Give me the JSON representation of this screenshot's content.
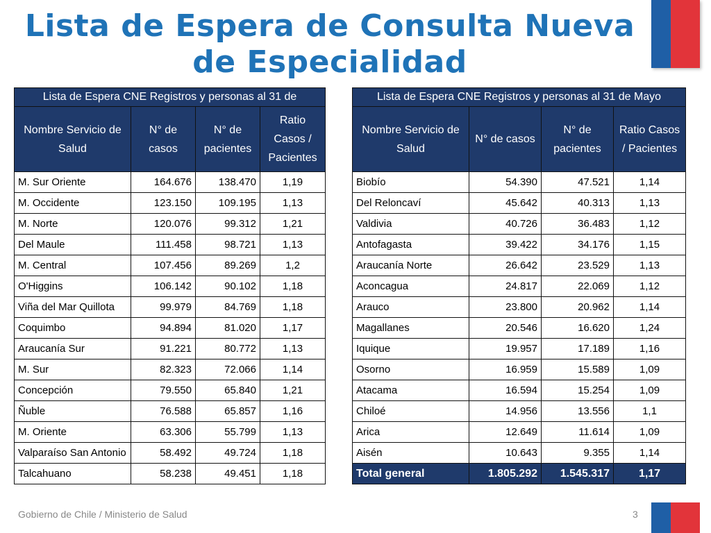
{
  "title": "Lista de Espera de Consulta Nueva de Especialidad",
  "table_left": {
    "caption": "Lista de Espera CNE Registros y  personas al  31 de",
    "headers": [
      "Nombre Servicio de Salud",
      "N° de casos",
      "N° de pacientes",
      "Ratio Casos / Pacientes"
    ],
    "rows": [
      [
        "M. Sur Oriente",
        "164.676",
        "138.470",
        "1,19"
      ],
      [
        "M. Occidente",
        "123.150",
        "109.195",
        "1,13"
      ],
      [
        "M. Norte",
        "120.076",
        "99.312",
        "1,21"
      ],
      [
        "Del Maule",
        "111.458",
        "98.721",
        "1,13"
      ],
      [
        "M. Central",
        "107.456",
        "89.269",
        "1,2"
      ],
      [
        "O'Higgins",
        "106.142",
        "90.102",
        "1,18"
      ],
      [
        "Viña del Mar Quillota",
        "99.979",
        "84.769",
        "1,18"
      ],
      [
        "Coquimbo",
        "94.894",
        "81.020",
        "1,17"
      ],
      [
        "Araucanía Sur",
        "91.221",
        "80.772",
        "1,13"
      ],
      [
        "M. Sur",
        "82.323",
        "72.066",
        "1,14"
      ],
      [
        "Concepción",
        "79.550",
        "65.840",
        "1,21"
      ],
      [
        "Ñuble",
        "76.588",
        "65.857",
        "1,16"
      ],
      [
        "M. Oriente",
        "63.306",
        "55.799",
        "1,13"
      ],
      [
        "Valparaíso San Antonio",
        "58.492",
        "49.724",
        "1,18"
      ],
      [
        "Talcahuano",
        "58.238",
        "49.451",
        "1,18"
      ]
    ]
  },
  "table_right": {
    "caption": "Lista de Espera CNE Registros y  personas al  31 de Mayo",
    "headers": [
      "Nombre Servicio de Salud",
      "N° de casos",
      "N° de pacientes",
      "Ratio Casos / Pacientes"
    ],
    "rows": [
      [
        "Biobío",
        "54.390",
        "47.521",
        "1,14"
      ],
      [
        "Del Reloncaví",
        "45.642",
        "40.313",
        "1,13"
      ],
      [
        "Valdivia",
        "40.726",
        "36.483",
        "1,12"
      ],
      [
        "Antofagasta",
        "39.422",
        "34.176",
        "1,15"
      ],
      [
        "Araucanía Norte",
        "26.642",
        "23.529",
        "1,13"
      ],
      [
        "Aconcagua",
        "24.817",
        "22.069",
        "1,12"
      ],
      [
        "Arauco",
        "23.800",
        "20.962",
        "1,14"
      ],
      [
        "Magallanes",
        "20.546",
        "16.620",
        "1,24"
      ],
      [
        "Iquique",
        "19.957",
        "17.189",
        "1,16"
      ],
      [
        "Osorno",
        "16.959",
        "15.589",
        "1,09"
      ],
      [
        "Atacama",
        "16.594",
        "15.254",
        "1,09"
      ],
      [
        "Chiloé",
        "14.956",
        "13.556",
        "1,1"
      ],
      [
        "Arica",
        "12.649",
        "11.614",
        "1,09"
      ],
      [
        "Aisén",
        "10.643",
        "9.355",
        "1,14"
      ]
    ],
    "total": [
      "Total general",
      "1.805.292",
      "1.545.317",
      "1,17"
    ]
  },
  "footer": "Gobierno de Chile / Ministerio de Salud",
  "page_number": "3",
  "colors": {
    "title": "#1f73b7",
    "header_bg": "#1f3a6b",
    "flag_blue": "#1f5fa6",
    "flag_red": "#e2343a"
  }
}
